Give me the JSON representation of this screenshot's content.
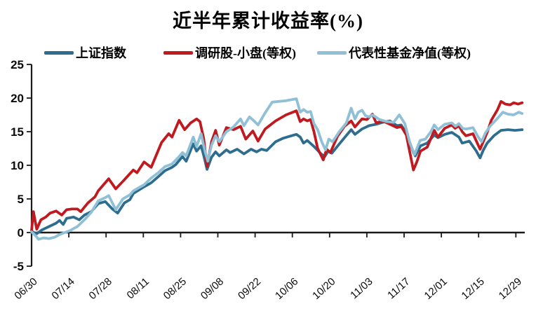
{
  "chart_data": {
    "type": "line",
    "title": "近半年累计收益率(%)",
    "legend_position": "top",
    "grid": false,
    "axis_color": "#1a1a1a",
    "ylim": [
      -5,
      25
    ],
    "y_ticks": [
      -5,
      0,
      5,
      10,
      15,
      20,
      25
    ],
    "x_tick_labels": [
      "06/30",
      "07/14",
      "07/28",
      "08/11",
      "08/25",
      "09/08",
      "09/22",
      "10/06",
      "10/20",
      "11/03",
      "11/17",
      "12/01",
      "12/15",
      "12/29"
    ],
    "x_unit": "tick-index (0 = 06/30, 1 tick = 14 days)",
    "series": [
      {
        "key": "sse-index",
        "name": "上证指数",
        "color": "#2E6D8E",
        "points": [
          [
            0,
            0.2
          ],
          [
            0.13,
            -0.2
          ],
          [
            0.28,
            0.4
          ],
          [
            0.47,
            0.9
          ],
          [
            0.66,
            1.4
          ],
          [
            0.75,
            1.8
          ],
          [
            0.85,
            1.2
          ],
          [
            0.94,
            2.1
          ],
          [
            1.13,
            2.3
          ],
          [
            1.28,
            1.9
          ],
          [
            1.42,
            2.6
          ],
          [
            1.6,
            3.1
          ],
          [
            1.79,
            4.3
          ],
          [
            1.98,
            4.6
          ],
          [
            2.17,
            3.5
          ],
          [
            2.31,
            2.9
          ],
          [
            2.49,
            4.4
          ],
          [
            2.64,
            4.9
          ],
          [
            2.73,
            5.8
          ],
          [
            3.02,
            6.8
          ],
          [
            3.21,
            7.4
          ],
          [
            3.4,
            8.3
          ],
          [
            3.58,
            9.2
          ],
          [
            3.77,
            9.7
          ],
          [
            3.87,
            10.1
          ],
          [
            4.05,
            11.3
          ],
          [
            4.15,
            10.6
          ],
          [
            4.34,
            13.2
          ],
          [
            4.43,
            12.1
          ],
          [
            4.55,
            12.9
          ],
          [
            4.62,
            11.5
          ],
          [
            4.71,
            9.4
          ],
          [
            4.83,
            11.2
          ],
          [
            4.94,
            12.0
          ],
          [
            5.04,
            11.4
          ],
          [
            5.23,
            12.3
          ],
          [
            5.33,
            11.9
          ],
          [
            5.52,
            12.4
          ],
          [
            5.7,
            11.7
          ],
          [
            5.89,
            12.4
          ],
          [
            6.04,
            12.0
          ],
          [
            6.17,
            12.4
          ],
          [
            6.31,
            12.2
          ],
          [
            6.55,
            13.5
          ],
          [
            6.74,
            14.0
          ],
          [
            6.92,
            14.3
          ],
          [
            7.11,
            14.6
          ],
          [
            7.21,
            14.2
          ],
          [
            7.3,
            13.3
          ],
          [
            7.4,
            13.7
          ],
          [
            7.58,
            12.8
          ],
          [
            7.77,
            11.7
          ],
          [
            7.87,
            11.3
          ],
          [
            7.96,
            12.1
          ],
          [
            8.06,
            11.8
          ],
          [
            8.25,
            13.1
          ],
          [
            8.43,
            14.3
          ],
          [
            8.58,
            15.3
          ],
          [
            8.68,
            14.6
          ],
          [
            8.87,
            15.4
          ],
          [
            9.06,
            15.9
          ],
          [
            9.25,
            16.1
          ],
          [
            9.43,
            16.4
          ],
          [
            9.62,
            16.6
          ],
          [
            9.81,
            15.9
          ],
          [
            9.92,
            16.0
          ],
          [
            10.06,
            14.8
          ],
          [
            10.25,
            11.9
          ],
          [
            10.3,
            11.4
          ],
          [
            10.44,
            12.9
          ],
          [
            10.62,
            13.3
          ],
          [
            10.81,
            14.5
          ],
          [
            10.91,
            14.1
          ],
          [
            11.09,
            14.6
          ],
          [
            11.28,
            14.9
          ],
          [
            11.47,
            14.2
          ],
          [
            11.56,
            13.3
          ],
          [
            11.75,
            13.6
          ],
          [
            11.94,
            12.1
          ],
          [
            12.04,
            11.1
          ],
          [
            12.13,
            12.3
          ],
          [
            12.23,
            13.3
          ],
          [
            12.41,
            14.4
          ],
          [
            12.6,
            15.2
          ],
          [
            12.79,
            15.3
          ],
          [
            12.98,
            15.2
          ],
          [
            13.17,
            15.3
          ]
        ]
      },
      {
        "key": "research-smallcap",
        "name": "调研股-小盘(等权)",
        "color": "#BF1A1F",
        "points": [
          [
            0,
            0.3
          ],
          [
            0.05,
            3.1
          ],
          [
            0.1,
            1.6
          ],
          [
            0.14,
            0.5
          ],
          [
            0.25,
            1.9
          ],
          [
            0.38,
            2.3
          ],
          [
            0.5,
            2.9
          ],
          [
            0.66,
            3.2
          ],
          [
            0.81,
            2.6
          ],
          [
            0.94,
            3.4
          ],
          [
            1.08,
            3.5
          ],
          [
            1.23,
            3.5
          ],
          [
            1.32,
            3.1
          ],
          [
            1.51,
            4.4
          ],
          [
            1.7,
            5.3
          ],
          [
            1.79,
            6.2
          ],
          [
            2.07,
            8.0
          ],
          [
            2.26,
            6.5
          ],
          [
            2.45,
            7.6
          ],
          [
            2.73,
            9.3
          ],
          [
            2.83,
            8.9
          ],
          [
            3.02,
            10.5
          ],
          [
            3.21,
            9.7
          ],
          [
            3.49,
            13.4
          ],
          [
            3.68,
            14.7
          ],
          [
            3.77,
            14.2
          ],
          [
            3.96,
            16.7
          ],
          [
            4.11,
            15.3
          ],
          [
            4.27,
            16.3
          ],
          [
            4.43,
            16.9
          ],
          [
            4.52,
            16.5
          ],
          [
            4.62,
            14.0
          ],
          [
            4.71,
            9.8
          ],
          [
            4.83,
            13.5
          ],
          [
            4.94,
            15.2
          ],
          [
            5.04,
            13.0
          ],
          [
            5.23,
            15.6
          ],
          [
            5.42,
            15.3
          ],
          [
            5.61,
            15.8
          ],
          [
            5.75,
            13.9
          ],
          [
            5.94,
            15.1
          ],
          [
            6.08,
            13.6
          ],
          [
            6.27,
            15.4
          ],
          [
            6.55,
            16.6
          ],
          [
            6.83,
            17.5
          ],
          [
            7.11,
            18.1
          ],
          [
            7.21,
            16.5
          ],
          [
            7.3,
            16.9
          ],
          [
            7.4,
            16.6
          ],
          [
            7.49,
            16.8
          ],
          [
            7.58,
            15.0
          ],
          [
            7.68,
            12.5
          ],
          [
            7.83,
            10.8
          ],
          [
            7.92,
            12.4
          ],
          [
            8.02,
            11.9
          ],
          [
            8.21,
            14.3
          ],
          [
            8.4,
            15.8
          ],
          [
            8.58,
            16.6
          ],
          [
            8.68,
            15.7
          ],
          [
            8.87,
            16.9
          ],
          [
            9.0,
            16.8
          ],
          [
            9.15,
            17.6
          ],
          [
            9.25,
            16.3
          ],
          [
            9.43,
            16.6
          ],
          [
            9.62,
            16.1
          ],
          [
            9.81,
            15.6
          ],
          [
            9.92,
            15.8
          ],
          [
            10.06,
            14.5
          ],
          [
            10.15,
            12.0
          ],
          [
            10.25,
            9.3
          ],
          [
            10.34,
            10.5
          ],
          [
            10.44,
            12.1
          ],
          [
            10.62,
            12.7
          ],
          [
            10.81,
            15.2
          ],
          [
            10.91,
            14.2
          ],
          [
            11.09,
            15.5
          ],
          [
            11.28,
            16.0
          ],
          [
            11.37,
            15.5
          ],
          [
            11.47,
            15.9
          ],
          [
            11.56,
            15.0
          ],
          [
            11.66,
            14.4
          ],
          [
            11.85,
            14.7
          ],
          [
            11.94,
            13.6
          ],
          [
            12.04,
            12.4
          ],
          [
            12.23,
            14.9
          ],
          [
            12.34,
            16.7
          ],
          [
            12.51,
            18.3
          ],
          [
            12.6,
            19.5
          ],
          [
            12.72,
            19.1
          ],
          [
            12.85,
            19.0
          ],
          [
            12.94,
            19.3
          ],
          [
            13.06,
            19.1
          ],
          [
            13.17,
            19.3
          ]
        ]
      },
      {
        "key": "fund-nav",
        "name": "代表性基金净值(等权)",
        "color": "#8FC0D6",
        "points": [
          [
            0,
            0.1
          ],
          [
            0.13,
            -0.6
          ],
          [
            0.19,
            -1.0
          ],
          [
            0.32,
            -0.8
          ],
          [
            0.47,
            -0.9
          ],
          [
            0.62,
            -0.7
          ],
          [
            0.75,
            -0.3
          ],
          [
            0.94,
            0.1
          ],
          [
            1.04,
            0.3
          ],
          [
            1.13,
            0.6
          ],
          [
            1.23,
            0.9
          ],
          [
            1.42,
            1.9
          ],
          [
            1.6,
            3.0
          ],
          [
            1.79,
            4.7
          ],
          [
            1.98,
            5.2
          ],
          [
            2.07,
            5.5
          ],
          [
            2.26,
            3.4
          ],
          [
            2.45,
            5.0
          ],
          [
            2.64,
            5.6
          ],
          [
            2.73,
            6.2
          ],
          [
            2.92,
            6.8
          ],
          [
            3.02,
            7.1
          ],
          [
            3.21,
            8.1
          ],
          [
            3.4,
            8.9
          ],
          [
            3.58,
            9.8
          ],
          [
            3.77,
            10.2
          ],
          [
            3.96,
            11.3
          ],
          [
            4.05,
            11.9
          ],
          [
            4.15,
            11.4
          ],
          [
            4.34,
            14.2
          ],
          [
            4.43,
            12.8
          ],
          [
            4.55,
            14.7
          ],
          [
            4.66,
            12.0
          ],
          [
            4.73,
            10.6
          ],
          [
            4.83,
            13.0
          ],
          [
            4.94,
            14.4
          ],
          [
            5.04,
            13.5
          ],
          [
            5.23,
            15.0
          ],
          [
            5.42,
            15.7
          ],
          [
            5.61,
            16.9
          ],
          [
            5.7,
            15.9
          ],
          [
            5.85,
            17.2
          ],
          [
            5.99,
            16.5
          ],
          [
            6.08,
            16.0
          ],
          [
            6.27,
            17.8
          ],
          [
            6.46,
            19.4
          ],
          [
            6.64,
            19.5
          ],
          [
            6.83,
            19.6
          ],
          [
            7.02,
            19.8
          ],
          [
            7.11,
            19.9
          ],
          [
            7.21,
            17.9
          ],
          [
            7.3,
            18.3
          ],
          [
            7.4,
            17.9
          ],
          [
            7.49,
            18.0
          ],
          [
            7.58,
            16.2
          ],
          [
            7.68,
            15.3
          ],
          [
            7.79,
            13.5
          ],
          [
            7.89,
            12.3
          ],
          [
            7.98,
            13.9
          ],
          [
            8.08,
            13.5
          ],
          [
            8.26,
            15.0
          ],
          [
            8.45,
            16.3
          ],
          [
            8.58,
            18.5
          ],
          [
            8.68,
            16.9
          ],
          [
            8.77,
            17.9
          ],
          [
            8.87,
            18.2
          ],
          [
            8.96,
            17.4
          ],
          [
            9.06,
            17.2
          ],
          [
            9.15,
            17.5
          ],
          [
            9.34,
            16.8
          ],
          [
            9.53,
            16.5
          ],
          [
            9.72,
            16.4
          ],
          [
            9.87,
            17.5
          ],
          [
            10.02,
            16.2
          ],
          [
            10.15,
            13.4
          ],
          [
            10.28,
            11.6
          ],
          [
            10.43,
            13.7
          ],
          [
            10.57,
            13.9
          ],
          [
            10.72,
            15.0
          ],
          [
            10.81,
            16.0
          ],
          [
            10.91,
            15.3
          ],
          [
            11.09,
            16.1
          ],
          [
            11.28,
            16.3
          ],
          [
            11.38,
            15.8
          ],
          [
            11.47,
            16.2
          ],
          [
            11.57,
            15.5
          ],
          [
            11.66,
            15.4
          ],
          [
            11.85,
            15.6
          ],
          [
            11.99,
            14.2
          ],
          [
            12.08,
            13.5
          ],
          [
            12.18,
            14.8
          ],
          [
            12.32,
            15.9
          ],
          [
            12.51,
            17.0
          ],
          [
            12.65,
            17.9
          ],
          [
            12.79,
            17.6
          ],
          [
            12.94,
            17.5
          ],
          [
            13.08,
            17.9
          ],
          [
            13.17,
            17.7
          ]
        ]
      }
    ]
  }
}
